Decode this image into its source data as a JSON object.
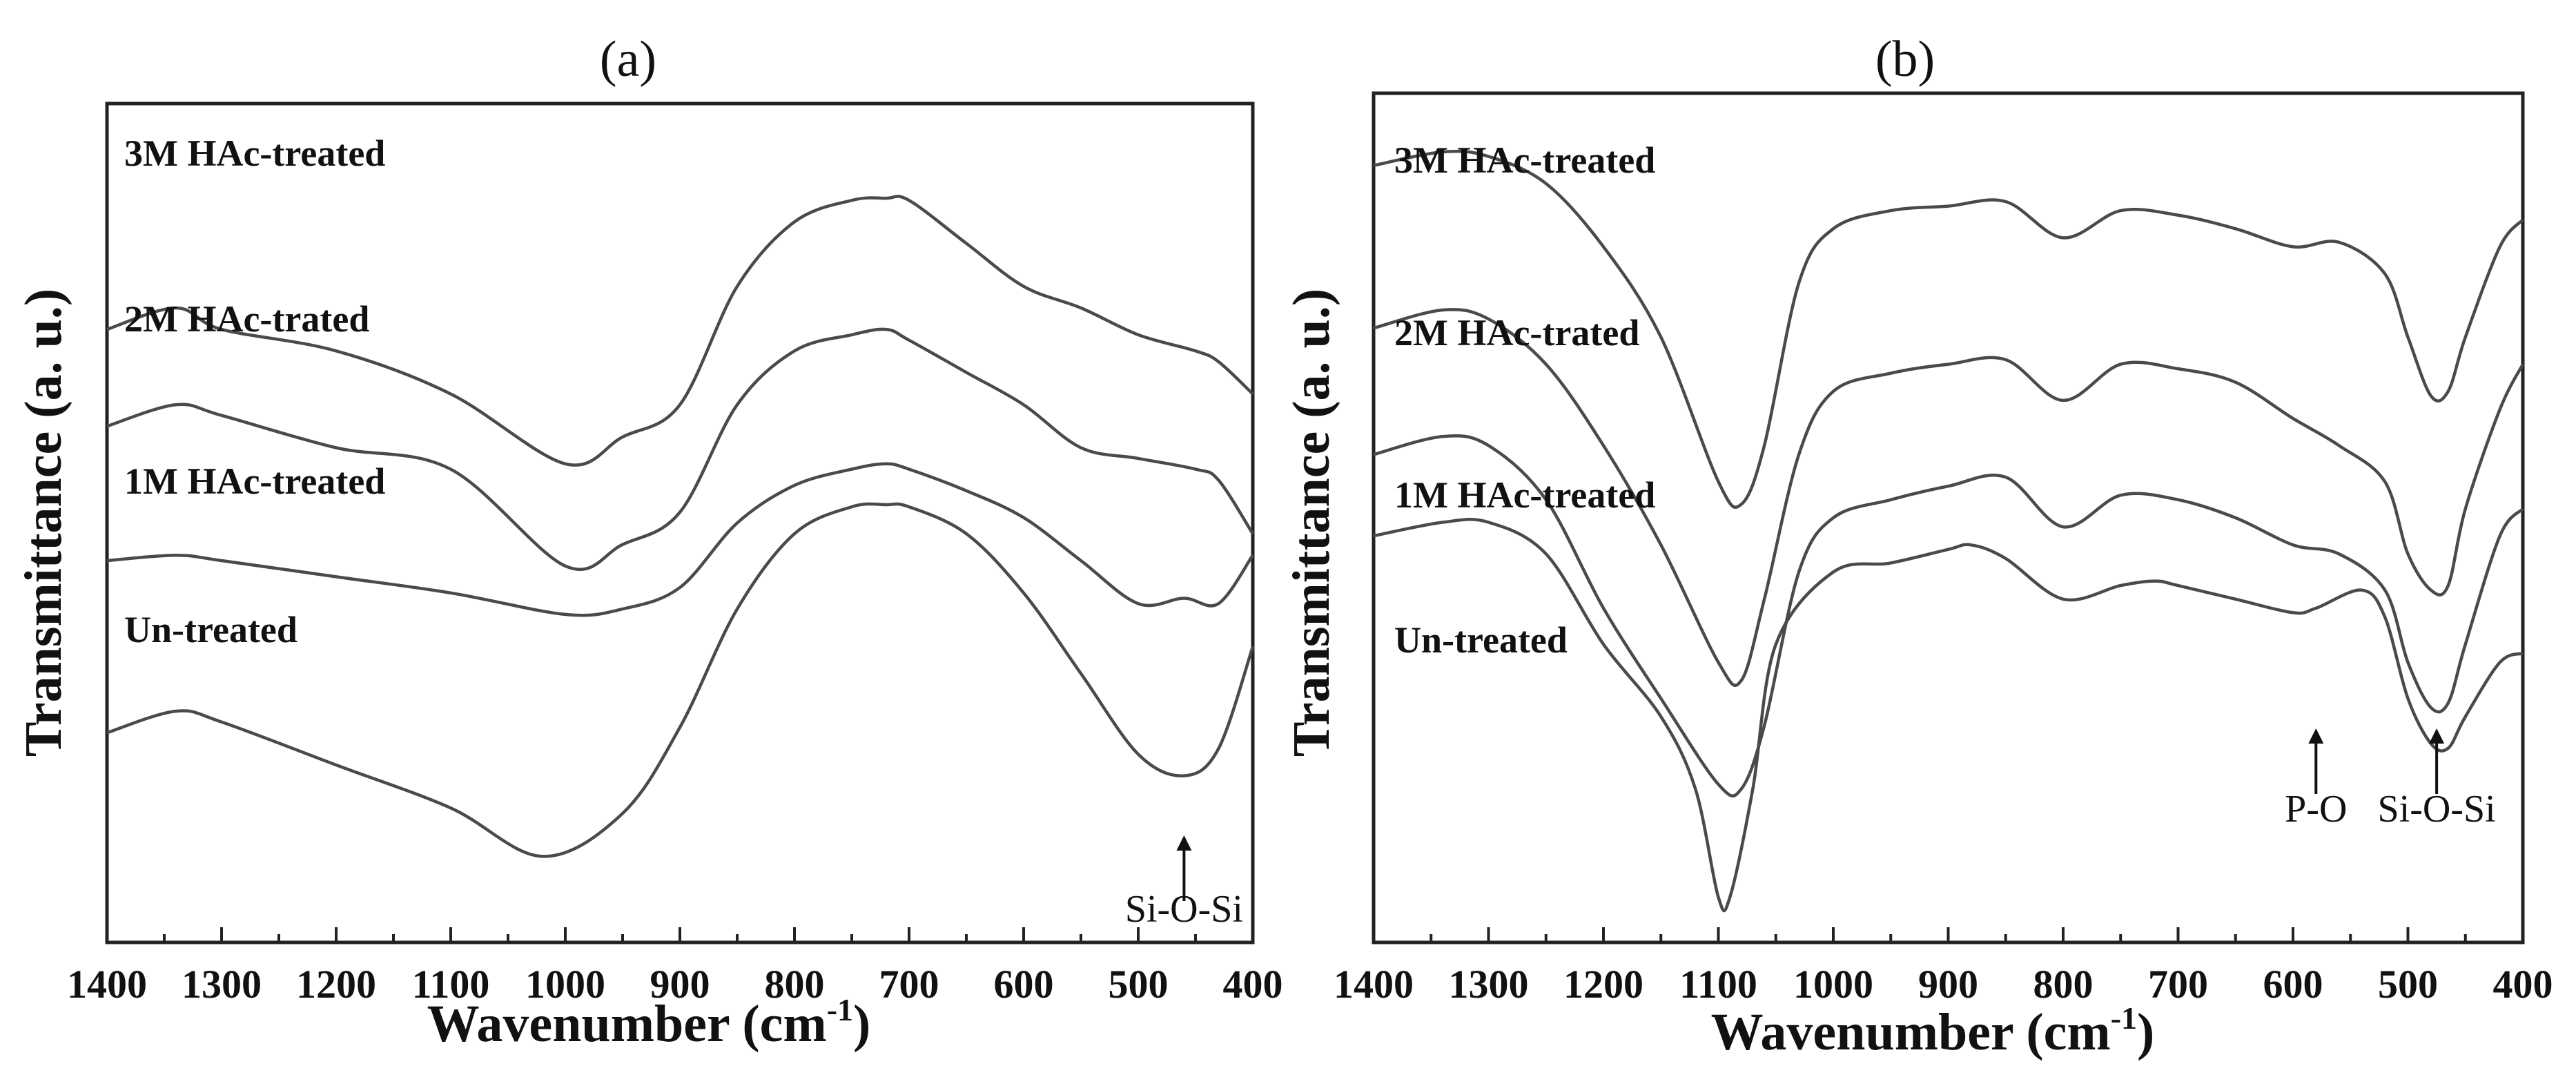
{
  "chart_data": [
    {
      "type": "line",
      "title": "(a)",
      "xlabel": "Wavenumber (cm",
      "xlabel_sup": "-1",
      "xlabel_close": ")",
      "ylabel": "Transmittance (a. u.)",
      "xlim": [
        1400,
        400
      ],
      "xticks": [
        "1400",
        "1300",
        "1200",
        "1100",
        "1000",
        "900",
        "800",
        "700",
        "600",
        "500",
        "400"
      ],
      "annotations": [
        {
          "text": "Si-O-Si",
          "x": 460
        }
      ],
      "series": [
        {
          "name": "3M HAc-treated",
          "x": [
            1400,
            1340,
            1300,
            1200,
            1100,
            1000,
            950,
            900,
            850,
            800,
            750,
            720,
            700,
            650,
            600,
            550,
            500,
            450,
            430,
            400
          ],
          "y": [
            7.5,
            7.7,
            7.5,
            7.3,
            6.9,
            6.25,
            6.5,
            6.8,
            7.9,
            8.5,
            8.7,
            8.72,
            8.7,
            8.3,
            7.9,
            7.7,
            7.45,
            7.3,
            7.2,
            6.9
          ]
        },
        {
          "name": "2M HAc-trated",
          "x": [
            1400,
            1340,
            1300,
            1200,
            1100,
            1000,
            950,
            900,
            850,
            800,
            750,
            720,
            700,
            650,
            600,
            550,
            500,
            450,
            430,
            400
          ],
          "y": [
            6.6,
            6.8,
            6.7,
            6.4,
            6.2,
            5.3,
            5.5,
            5.8,
            6.8,
            7.3,
            7.45,
            7.5,
            7.4,
            7.1,
            6.8,
            6.4,
            6.3,
            6.2,
            6.1,
            5.6
          ]
        },
        {
          "name": "1M HAc-treated",
          "x": [
            1400,
            1340,
            1300,
            1200,
            1100,
            1000,
            950,
            900,
            850,
            800,
            750,
            720,
            700,
            650,
            600,
            550,
            500,
            460,
            430,
            400
          ],
          "y": [
            5.35,
            5.4,
            5.35,
            5.2,
            5.05,
            4.85,
            4.9,
            5.1,
            5.7,
            6.05,
            6.2,
            6.25,
            6.2,
            6.0,
            5.75,
            5.35,
            4.95,
            5.0,
            4.95,
            5.4
          ]
        },
        {
          "name": "Un-treated",
          "x": [
            1400,
            1340,
            1300,
            1200,
            1100,
            1020,
            950,
            900,
            850,
            800,
            750,
            720,
            700,
            650,
            600,
            550,
            500,
            460,
            430,
            400
          ],
          "y": [
            3.75,
            3.95,
            3.85,
            3.45,
            3.05,
            2.6,
            3.0,
            3.8,
            4.9,
            5.6,
            5.85,
            5.87,
            5.85,
            5.6,
            5.05,
            4.3,
            3.55,
            3.35,
            3.6,
            4.55
          ]
        }
      ]
    },
    {
      "type": "line",
      "title": "(b)",
      "xlabel": "Wavenumber (cm",
      "xlabel_sup": "-1",
      "xlabel_close": ")",
      "ylabel": "Transmittance (a. u.)",
      "xlim": [
        1400,
        400
      ],
      "xticks": [
        "1400",
        "1300",
        "1200",
        "1100",
        "1000",
        "900",
        "800",
        "700",
        "600",
        "500",
        "400"
      ],
      "annotations": [
        {
          "text": "P-O",
          "x": 580
        },
        {
          "text": "Si-O-Si",
          "x": 475
        }
      ],
      "series": [
        {
          "name": "3M HAc-treated",
          "x": [
            1400,
            1340,
            1300,
            1250,
            1200,
            1150,
            1100,
            1080,
            1060,
            1030,
            1000,
            950,
            900,
            850,
            800,
            750,
            700,
            650,
            600,
            560,
            520,
            500,
            480,
            465,
            450,
            420,
            400
          ],
          "y": [
            9.1,
            9.25,
            9.2,
            8.9,
            8.2,
            7.2,
            5.6,
            5.35,
            6.0,
            7.8,
            8.4,
            8.6,
            8.65,
            8.7,
            8.3,
            8.6,
            8.55,
            8.4,
            8.2,
            8.25,
            7.9,
            7.2,
            6.55,
            6.6,
            7.2,
            8.2,
            8.5
          ]
        },
        {
          "name": "2M HAc-trated",
          "x": [
            1400,
            1340,
            1300,
            1250,
            1200,
            1150,
            1100,
            1080,
            1060,
            1030,
            1000,
            950,
            900,
            850,
            800,
            750,
            700,
            650,
            600,
            560,
            520,
            500,
            480,
            465,
            450,
            420,
            400
          ],
          "y": [
            7.3,
            7.5,
            7.4,
            6.9,
            6.0,
            4.9,
            3.6,
            3.4,
            4.3,
            5.9,
            6.6,
            6.8,
            6.9,
            6.95,
            6.5,
            6.9,
            6.85,
            6.7,
            6.3,
            6.0,
            5.6,
            4.8,
            4.4,
            4.45,
            5.3,
            6.4,
            6.9
          ]
        },
        {
          "name": "1M HAc-treated",
          "x": [
            1400,
            1340,
            1300,
            1250,
            1200,
            1150,
            1100,
            1080,
            1060,
            1030,
            1000,
            950,
            900,
            850,
            800,
            750,
            700,
            650,
            600,
            560,
            520,
            500,
            480,
            465,
            450,
            420,
            400
          ],
          "y": [
            5.9,
            6.1,
            6.0,
            5.4,
            4.2,
            3.2,
            2.25,
            2.2,
            2.9,
            4.6,
            5.2,
            5.4,
            5.55,
            5.65,
            5.1,
            5.45,
            5.4,
            5.2,
            4.9,
            4.8,
            4.4,
            3.6,
            3.1,
            3.15,
            3.8,
            5.0,
            5.3
          ]
        },
        {
          "name": "Un-treated",
          "x": [
            1400,
            1340,
            1300,
            1250,
            1200,
            1150,
            1120,
            1100,
            1090,
            1070,
            1050,
            1000,
            950,
            900,
            880,
            850,
            800,
            750,
            720,
            700,
            650,
            600,
            580,
            540,
            520,
            500,
            480,
            465,
            450,
            420,
            400
          ],
          "y": [
            5.0,
            5.15,
            5.15,
            4.8,
            3.8,
            3.0,
            2.2,
            1.0,
            1.0,
            2.2,
            3.8,
            4.6,
            4.7,
            4.85,
            4.9,
            4.75,
            4.3,
            4.45,
            4.5,
            4.45,
            4.3,
            4.15,
            4.2,
            4.4,
            4.1,
            3.2,
            2.7,
            2.65,
            3.0,
            3.6,
            3.7
          ]
        }
      ]
    }
  ]
}
